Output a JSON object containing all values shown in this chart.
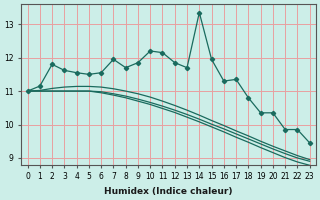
{
  "xlabel": "Humidex (Indice chaleur)",
  "ylabel": "",
  "bg_color": "#cceee8",
  "grid_color": "#e8a0a0",
  "line_color": "#1a6b5e",
  "xlim": [
    -0.5,
    23.5
  ],
  "ylim": [
    8.8,
    13.6
  ],
  "x_ticks": [
    0,
    1,
    2,
    3,
    4,
    5,
    6,
    7,
    8,
    9,
    10,
    11,
    12,
    13,
    14,
    15,
    16,
    17,
    18,
    19,
    20,
    21,
    22,
    23
  ],
  "y_ticks": [
    9,
    10,
    11,
    12,
    13
  ],
  "data_x": [
    0,
    1,
    2,
    3,
    4,
    5,
    6,
    7,
    8,
    9,
    10,
    11,
    12,
    13,
    14,
    15,
    16,
    17,
    18,
    19,
    20,
    21,
    22,
    23
  ],
  "data_y": [
    11.0,
    11.15,
    11.8,
    11.62,
    11.55,
    11.5,
    11.55,
    11.95,
    11.7,
    11.85,
    12.2,
    12.15,
    11.85,
    11.7,
    13.35,
    11.95,
    11.3,
    11.35,
    10.8,
    10.35,
    10.35,
    9.85,
    9.85,
    9.45
  ],
  "smooth1_y": [
    11.0,
    11.0,
    11.0,
    11.0,
    11.0,
    11.0,
    10.95,
    10.88,
    10.8,
    10.7,
    10.6,
    10.48,
    10.36,
    10.22,
    10.08,
    9.93,
    9.78,
    9.62,
    9.47,
    9.31,
    9.16,
    9.01,
    8.88,
    8.78
  ],
  "smooth2_y": [
    11.0,
    11.0,
    11.0,
    11.0,
    11.0,
    11.0,
    10.98,
    10.92,
    10.85,
    10.76,
    10.66,
    10.55,
    10.43,
    10.3,
    10.16,
    10.01,
    9.87,
    9.72,
    9.57,
    9.42,
    9.27,
    9.13,
    9.0,
    8.9
  ],
  "smooth3_y": [
    11.0,
    11.02,
    11.08,
    11.12,
    11.14,
    11.14,
    11.12,
    11.07,
    11.0,
    10.92,
    10.82,
    10.7,
    10.57,
    10.43,
    10.28,
    10.12,
    9.97,
    9.81,
    9.66,
    9.5,
    9.35,
    9.21,
    9.07,
    8.95
  ]
}
